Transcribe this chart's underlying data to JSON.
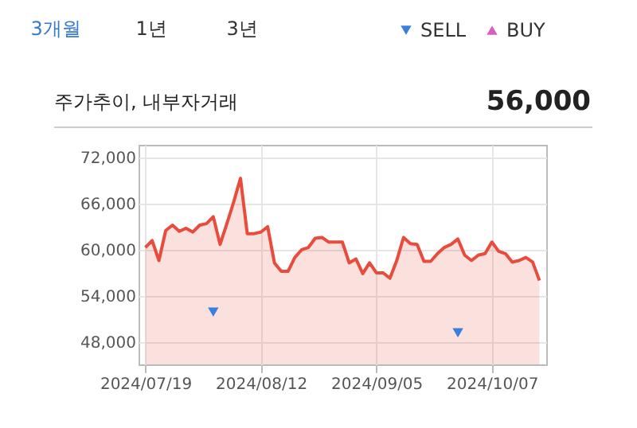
{
  "chart_data": {
    "type": "area",
    "title": "주가추이, 내부자거래",
    "subtitle": "56,000",
    "annotations": [
      "3개월",
      "1년",
      "3년"
    ],
    "categories": [
      "2024/07/19",
      null,
      null,
      null,
      null,
      null,
      null,
      null,
      null,
      null,
      null,
      null,
      null,
      null,
      null,
      null,
      null,
      "2024/08/12",
      null,
      null,
      null,
      null,
      null,
      null,
      null,
      null,
      null,
      null,
      null,
      null,
      null,
      null,
      null,
      null,
      "2024/09/05",
      null,
      null,
      null,
      null,
      null,
      null,
      null,
      null,
      null,
      null,
      null,
      null,
      null,
      null,
      null,
      null,
      "2024/10/07",
      null,
      null,
      null,
      null,
      null,
      null,
      null
    ],
    "series": [
      {
        "color": "#e84c3d",
        "values": [
          60300,
          61200,
          58600,
          62500,
          63200,
          62400,
          62800,
          62300,
          63200,
          63400,
          64300,
          60700,
          63400,
          66200,
          69300,
          62100,
          62100,
          62300,
          63000,
          58300,
          57200,
          57200,
          59000,
          60000,
          60300,
          61500,
          61600,
          61000,
          61000,
          61000,
          58300,
          58800,
          56900,
          58300,
          57000,
          57000,
          56300,
          58600,
          61600,
          60800,
          60700,
          58500,
          58500,
          59500,
          60300,
          60700,
          61400,
          59300,
          58600,
          59300,
          59500,
          61000,
          59800,
          59500,
          58400,
          58600,
          59000,
          58400,
          56000
        ]
      },
      {
        "type": "scatter",
        "name": "SELL",
        "color": "#3b7fdc",
        "marker": "triangle-down",
        "values": [
          null,
          null,
          null,
          null,
          null,
          null,
          null,
          null,
          null,
          null,
          51900,
          null,
          null,
          null,
          null,
          null,
          null,
          null,
          null,
          null,
          null,
          null,
          null,
          null,
          null,
          null,
          null,
          null,
          null,
          null,
          null,
          null,
          null,
          null,
          null,
          null,
          null,
          null,
          null,
          null,
          null,
          null,
          null,
          null,
          null,
          null,
          49200,
          null,
          null,
          null,
          null,
          null,
          null,
          null,
          null,
          null,
          null,
          null,
          null
        ]
      },
      {
        "type": "scatter",
        "name": "BUY",
        "color": "#d65fc0",
        "marker": "triangle-up",
        "values": [
          null,
          null,
          null,
          null,
          null,
          null,
          null,
          null,
          null,
          null,
          null,
          null,
          null,
          null,
          null,
          null,
          null,
          null,
          null,
          null,
          null,
          null,
          null,
          null,
          null,
          null,
          null,
          null,
          null,
          null,
          null,
          null,
          null,
          null,
          null,
          null,
          null,
          null,
          null,
          null,
          null,
          null,
          null,
          null,
          null,
          null,
          null,
          null,
          null,
          null,
          null,
          null,
          null,
          null,
          null,
          null,
          null,
          null,
          null
        ]
      }
    ],
    "ylim": [
      45100,
      73650
    ],
    "yticks": [
      {
        "value": 48000,
        "label": "48,000"
      },
      {
        "value": 54000,
        "label": "54,000"
      },
      {
        "value": 60000,
        "label": "60,000"
      },
      {
        "value": 66000,
        "label": "66,000"
      },
      {
        "value": 72000,
        "label": "72,000"
      }
    ],
    "grid": true,
    "legend": "top right"
  }
}
